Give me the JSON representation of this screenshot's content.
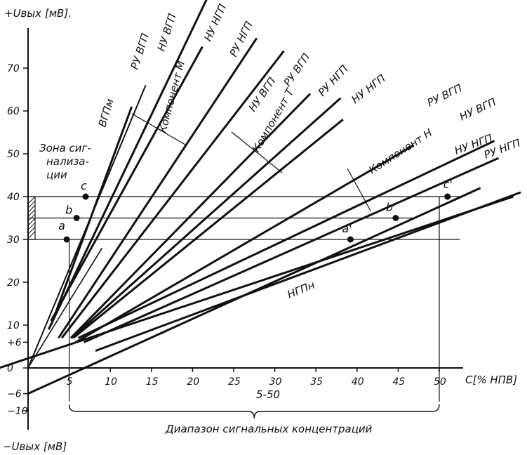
{
  "chart_data": {
    "type": "line",
    "title": "",
    "y_axis_label_top": "+Uвых [мВ].",
    "y_axis_label_bottom": "−Uвых [мВ]",
    "x_axis_label": "С[% НПВ]",
    "x_ticks": [
      "5",
      "10",
      "15",
      "20",
      "25",
      "30",
      "35",
      "40",
      "45",
      "50"
    ],
    "y_ticks": [
      "70",
      "60",
      "50",
      "40",
      "30",
      "20",
      "10",
      "+6",
      "0",
      "−6",
      "−10"
    ],
    "xlim": [
      -3,
      60
    ],
    "ylim": [
      -12,
      80
    ],
    "signal_zone_label": "Зона сиг-\nнализа-\nции",
    "signal_zone_range": [
      30,
      40
    ],
    "reference_levels": [
      30,
      35,
      40
    ],
    "range_label": "5-50",
    "range_caption": "Диапазон сигнальных концентраций",
    "range": [
      5,
      50
    ],
    "points": [
      {
        "name": "a",
        "x": 4.7,
        "y": 30
      },
      {
        "name": "b",
        "x": 5.9,
        "y": 35
      },
      {
        "name": "c",
        "x": 7.0,
        "y": 40
      },
      {
        "name": "a'",
        "x": 39.2,
        "y": 30
      },
      {
        "name": "b'",
        "x": 44.7,
        "y": 35
      },
      {
        "name": "c'",
        "x": 51.0,
        "y": 40
      }
    ],
    "series": [
      {
        "name": "ВГПм",
        "x": [
          2.8,
          12.6
        ],
        "y": [
          10,
          61
        ]
      },
      {
        "name": "РУ ВГП",
        "x": [
          2.5,
          21.7
        ],
        "y": [
          9,
          86
        ]
      },
      {
        "name": "НУ ВГП",
        "x": [
          2.8,
          21.2
        ],
        "y": [
          11,
          75
        ]
      },
      {
        "name": "НУ НГП",
        "x": [
          3.7,
          27.8
        ],
        "y": [
          7,
          77
        ]
      },
      {
        "name": "РУ НГП",
        "x": [
          4.1,
          31.1
        ],
        "y": [
          7,
          74
        ]
      },
      {
        "name": "НУ ВГП",
        "x": [
          5.2,
          34.3
        ],
        "y": [
          7,
          64
        ]
      },
      {
        "name": "РУ ВГП",
        "x": [
          5.3,
          38.0
        ],
        "y": [
          7,
          63
        ]
      },
      {
        "name": "РУ НГП",
        "x": [
          5.5,
          38.3
        ],
        "y": [
          7,
          58
        ]
      },
      {
        "name": "НУ НГП",
        "x": [
          5.8,
          46.9
        ],
        "y": [
          6,
          52
        ]
      },
      {
        "name": "РУ ВГП",
        "x": [
          6.1,
          56.7
        ],
        "y": [
          7,
          53
        ]
      },
      {
        "name": "НУ ВГП",
        "x": [
          6.8,
          57.2
        ],
        "y": [
          6,
          49
        ]
      },
      {
        "name": "НУ НГП",
        "x": [
          8.2,
          59.9
        ],
        "y": [
          4,
          41
        ]
      },
      {
        "name": "РУ НГП",
        "x": [
          -3.5,
          59.0
        ],
        "y": [
          0,
          40
        ]
      },
      {
        "name": "НГПн",
        "x": [
          0,
          55.0
        ],
        "y": [
          -6,
          42
        ]
      }
    ],
    "component_labels": [
      "Компонент М",
      "Компонент Т",
      "Компонент Н"
    ],
    "line_labels": [
      {
        "text": "ВГПм"
      },
      {
        "text": "РУ ВГП"
      },
      {
        "text": "НУ ВГП"
      },
      {
        "text": "НУ НГП"
      },
      {
        "text": "РУ НГП"
      },
      {
        "text": "НУ ВГП"
      },
      {
        "text": "РУ ВГП"
      },
      {
        "text": "РУ НГП"
      },
      {
        "text": "НУ НГП"
      },
      {
        "text": "РУ ВГП"
      },
      {
        "text": "НУ ВГП"
      },
      {
        "text": "НУ НГП"
      },
      {
        "text": "РУ НГП"
      },
      {
        "text": "НГПн"
      }
    ]
  }
}
